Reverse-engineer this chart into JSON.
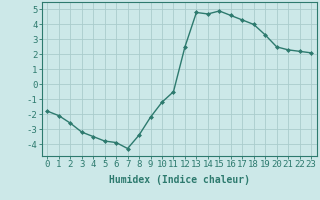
{
  "x": [
    0,
    1,
    2,
    3,
    4,
    5,
    6,
    7,
    8,
    9,
    10,
    11,
    12,
    13,
    14,
    15,
    16,
    17,
    18,
    19,
    20,
    21,
    22,
    23
  ],
  "y": [
    -1.8,
    -2.1,
    -2.6,
    -3.2,
    -3.5,
    -3.8,
    -3.9,
    -4.3,
    -3.4,
    -2.2,
    -1.2,
    -0.5,
    2.5,
    4.8,
    4.7,
    4.9,
    4.6,
    4.3,
    4.0,
    3.3,
    2.5,
    2.3,
    2.2,
    2.1
  ],
  "xlabel": "Humidex (Indice chaleur)",
  "ylim": [
    -4.8,
    5.5
  ],
  "xlim": [
    -0.5,
    23.5
  ],
  "yticks": [
    -4,
    -3,
    -2,
    -1,
    0,
    1,
    2,
    3,
    4,
    5
  ],
  "xticks": [
    0,
    1,
    2,
    3,
    4,
    5,
    6,
    7,
    8,
    9,
    10,
    11,
    12,
    13,
    14,
    15,
    16,
    17,
    18,
    19,
    20,
    21,
    22,
    23
  ],
  "line_color": "#2d7a6e",
  "marker_color": "#2d7a6e",
  "bg_color": "#cce8e8",
  "grid_color": "#aacccc",
  "axis_color": "#2d7a6e",
  "label_color": "#2d7a6e",
  "xlabel_fontsize": 7,
  "tick_fontsize": 6.5
}
